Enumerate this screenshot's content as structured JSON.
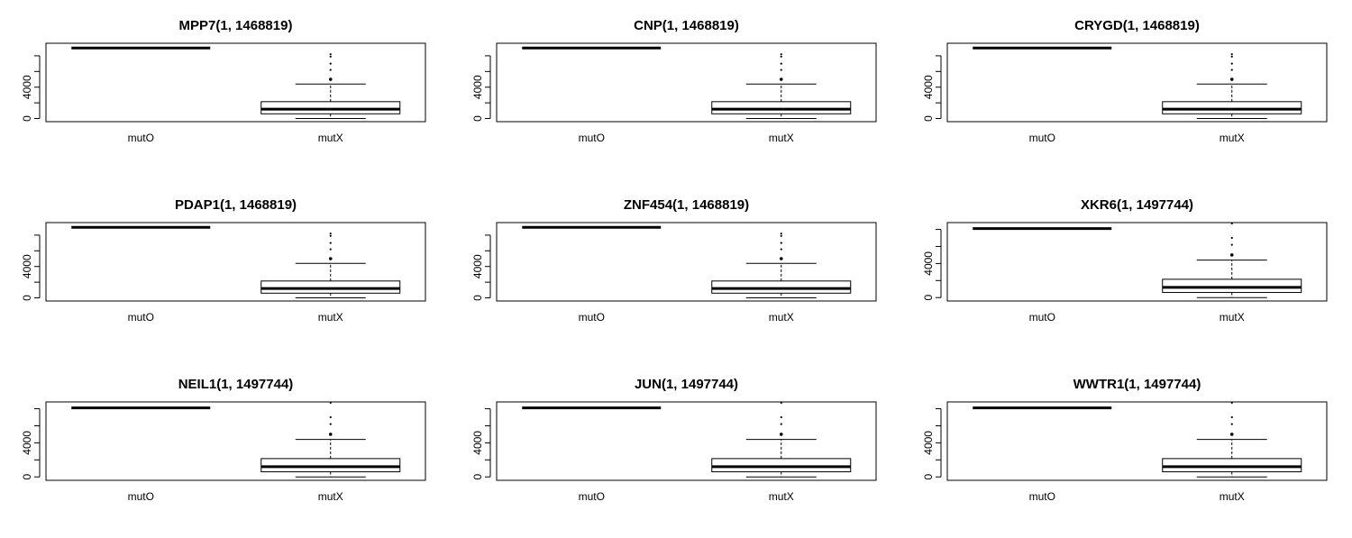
{
  "figure": {
    "rows": 3,
    "cols": 3
  },
  "chart_data": [
    {
      "type": "boxplot",
      "title": "MPP7(1, 1468819)",
      "categories": [
        "mutO",
        "mutX"
      ],
      "yticks": [
        0,
        4000
      ],
      "ylim": [
        -400,
        9600
      ],
      "boxes": [
        {
          "name": "mutO",
          "median": 9000,
          "q1": 9000,
          "q3": 9000,
          "whisker_low": 9000,
          "whisker_high": 9000,
          "outliers": []
        },
        {
          "name": "mutX",
          "median": 1200,
          "q1": 600,
          "q3": 2150,
          "whisker_low": 0,
          "whisker_high": 4400,
          "outliers": [
            5000,
            6200,
            7000,
            7900,
            8200
          ]
        }
      ]
    },
    {
      "type": "boxplot",
      "title": "CNP(1, 1468819)",
      "categories": [
        "mutO",
        "mutX"
      ],
      "yticks": [
        0,
        4000
      ],
      "ylim": [
        -400,
        9600
      ],
      "boxes": [
        {
          "name": "mutO",
          "median": 9000,
          "q1": 9000,
          "q3": 9000,
          "whisker_low": 9000,
          "whisker_high": 9000,
          "outliers": []
        },
        {
          "name": "mutX",
          "median": 1200,
          "q1": 600,
          "q3": 2150,
          "whisker_low": 0,
          "whisker_high": 4400,
          "outliers": [
            5000,
            6200,
            7000,
            7900,
            8200
          ]
        }
      ]
    },
    {
      "type": "boxplot",
      "title": "CRYGD(1, 1468819)",
      "categories": [
        "mutO",
        "mutX"
      ],
      "yticks": [
        0,
        4000
      ],
      "ylim": [
        -400,
        9600
      ],
      "boxes": [
        {
          "name": "mutO",
          "median": 9000,
          "q1": 9000,
          "q3": 9000,
          "whisker_low": 9000,
          "whisker_high": 9000,
          "outliers": []
        },
        {
          "name": "mutX",
          "median": 1200,
          "q1": 600,
          "q3": 2150,
          "whisker_low": 0,
          "whisker_high": 4400,
          "outliers": [
            5000,
            6200,
            7000,
            7900,
            8200
          ]
        }
      ]
    },
    {
      "type": "boxplot",
      "title": "PDAP1(1, 1468819)",
      "categories": [
        "mutO",
        "mutX"
      ],
      "yticks": [
        0,
        4000
      ],
      "ylim": [
        -400,
        9600
      ],
      "boxes": [
        {
          "name": "mutO",
          "median": 9000,
          "q1": 9000,
          "q3": 9000,
          "whisker_low": 9000,
          "whisker_high": 9000,
          "outliers": []
        },
        {
          "name": "mutX",
          "median": 1200,
          "q1": 600,
          "q3": 2150,
          "whisker_low": 0,
          "whisker_high": 4400,
          "outliers": [
            5000,
            6200,
            7000,
            7900,
            8200
          ]
        }
      ]
    },
    {
      "type": "boxplot",
      "title": "ZNF454(1, 1468819)",
      "categories": [
        "mutO",
        "mutX"
      ],
      "yticks": [
        0,
        4000
      ],
      "ylim": [
        -400,
        9600
      ],
      "boxes": [
        {
          "name": "mutO",
          "median": 9000,
          "q1": 9000,
          "q3": 9000,
          "whisker_low": 9000,
          "whisker_high": 9000,
          "outliers": []
        },
        {
          "name": "mutX",
          "median": 1200,
          "q1": 600,
          "q3": 2150,
          "whisker_low": 0,
          "whisker_high": 4400,
          "outliers": [
            5000,
            6200,
            7000,
            7900,
            8200
          ]
        }
      ]
    },
    {
      "type": "boxplot",
      "title": "XKR6(1, 1497744)",
      "categories": [
        "mutO",
        "mutX"
      ],
      "yticks": [
        0,
        4000
      ],
      "ylim": [
        -400,
        8800
      ],
      "boxes": [
        {
          "name": "mutO",
          "median": 8100,
          "q1": 8100,
          "q3": 8100,
          "whisker_low": 8100,
          "whisker_high": 8100,
          "outliers": []
        },
        {
          "name": "mutX",
          "median": 1200,
          "q1": 600,
          "q3": 2150,
          "whisker_low": 0,
          "whisker_high": 4400,
          "outliers": [
            5000,
            6200,
            7000,
            8700
          ]
        }
      ]
    },
    {
      "type": "boxplot",
      "title": "NEIL1(1, 1497744)",
      "categories": [
        "mutO",
        "mutX"
      ],
      "yticks": [
        0,
        4000
      ],
      "ylim": [
        -400,
        8800
      ],
      "boxes": [
        {
          "name": "mutO",
          "median": 8100,
          "q1": 8100,
          "q3": 8100,
          "whisker_low": 8100,
          "whisker_high": 8100,
          "outliers": []
        },
        {
          "name": "mutX",
          "median": 1200,
          "q1": 600,
          "q3": 2150,
          "whisker_low": 0,
          "whisker_high": 4400,
          "outliers": [
            5000,
            6200,
            7000,
            8700
          ]
        }
      ]
    },
    {
      "type": "boxplot",
      "title": "JUN(1, 1497744)",
      "categories": [
        "mutO",
        "mutX"
      ],
      "yticks": [
        0,
        4000
      ],
      "ylim": [
        -400,
        8800
      ],
      "boxes": [
        {
          "name": "mutO",
          "median": 8100,
          "q1": 8100,
          "q3": 8100,
          "whisker_low": 8100,
          "whisker_high": 8100,
          "outliers": []
        },
        {
          "name": "mutX",
          "median": 1200,
          "q1": 600,
          "q3": 2150,
          "whisker_low": 0,
          "whisker_high": 4400,
          "outliers": [
            5000,
            6200,
            7000,
            8700
          ]
        }
      ]
    },
    {
      "type": "boxplot",
      "title": "WWTR1(1, 1497744)",
      "categories": [
        "mutO",
        "mutX"
      ],
      "yticks": [
        0,
        4000
      ],
      "ylim": [
        -400,
        8800
      ],
      "boxes": [
        {
          "name": "mutO",
          "median": 8100,
          "q1": 8100,
          "q3": 8100,
          "whisker_low": 8100,
          "whisker_high": 8100,
          "outliers": []
        },
        {
          "name": "mutX",
          "median": 1200,
          "q1": 600,
          "q3": 2150,
          "whisker_low": 0,
          "whisker_high": 4400,
          "outliers": [
            5000,
            6200,
            7000,
            8700
          ]
        }
      ]
    }
  ]
}
